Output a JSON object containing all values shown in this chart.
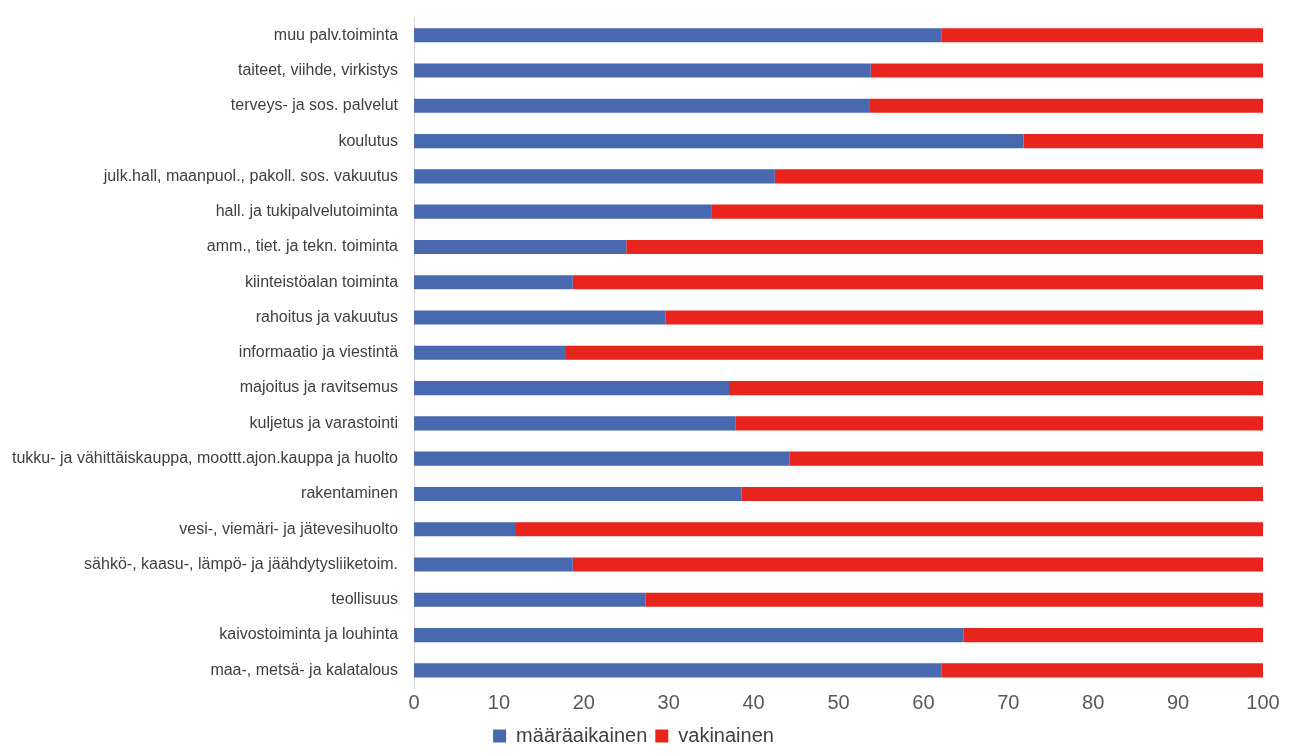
{
  "chart_data": {
    "type": "bar",
    "orientation": "horizontal",
    "stacked": true,
    "categories": [
      "muu palv.toiminta",
      "taiteet, viihde, virkistys",
      "terveys- ja sos. palvelut",
      "koulutus",
      "julk.hall, maanpuol., pakoll. sos. vakuutus",
      "hall. ja tukipalvelutoiminta",
      "amm., tiet. ja tekn. toiminta",
      "kiinteistöalan toiminta",
      "rahoitus ja vakuutus",
      "informaatio ja viestintä",
      "majoitus ja ravitsemus",
      "kuljetus ja varastointi",
      "tukku- ja vähittäiskauppa, moottt.ajon.kauppa ja huolto",
      "rakentaminen",
      "vesi-, viemäri- ja jätevesihuolto",
      "sähkö-, kaasu-, lämpö- ja jäähdytysliiketoim.",
      "teollisuus",
      "kaivostoiminta ja louhinta",
      "maa-, metsä- ja kalatalous"
    ],
    "series": [
      {
        "name": "määräaikainen",
        "color": "#4868b0",
        "values": [
          62.1,
          53.8,
          53.7,
          71.8,
          42.5,
          35.0,
          25.0,
          18.7,
          29.6,
          17.9,
          37.1,
          37.9,
          44.2,
          38.6,
          11.9,
          18.7,
          27.3,
          64.7,
          62.1
        ]
      },
      {
        "name": "vakinainen",
        "color": "#e8241c",
        "values": [
          37.9,
          46.2,
          46.3,
          28.2,
          57.5,
          65.0,
          75.0,
          81.3,
          70.4,
          82.1,
          62.9,
          62.1,
          55.8,
          61.4,
          88.1,
          81.3,
          72.7,
          35.3,
          37.9
        ]
      }
    ],
    "xlim": [
      0,
      100
    ],
    "xticks": [
      0,
      10,
      20,
      30,
      40,
      50,
      60,
      70,
      80,
      90,
      100
    ],
    "grid": false,
    "legend": "bottom"
  }
}
